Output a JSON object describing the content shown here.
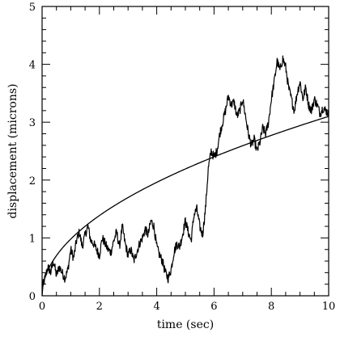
{
  "chart_data": {
    "type": "line",
    "title": "",
    "xlabel": "time (sec)",
    "ylabel": "displacement (microns)",
    "xlim": [
      0,
      10
    ],
    "ylim": [
      0,
      5
    ],
    "x_ticks": [
      0,
      2,
      4,
      6,
      8,
      10
    ],
    "y_ticks": [
      0,
      1,
      2,
      3,
      4,
      5
    ],
    "grid": false,
    "legend": "none",
    "series": [
      {
        "style": "jagged",
        "x": [
          0,
          0.1,
          0.2,
          0.3,
          0.4,
          0.5,
          0.6,
          0.7,
          0.8,
          0.9,
          1.0,
          1.1,
          1.2,
          1.3,
          1.4,
          1.5,
          1.6,
          1.7,
          1.8,
          1.9,
          2.0,
          2.1,
          2.2,
          2.3,
          2.4,
          2.5,
          2.6,
          2.7,
          2.8,
          2.9,
          3.0,
          3.1,
          3.2,
          3.3,
          3.4,
          3.5,
          3.6,
          3.7,
          3.8,
          3.9,
          4.0,
          4.1,
          4.2,
          4.3,
          4.4,
          4.5,
          4.6,
          4.7,
          4.8,
          4.9,
          5.0,
          5.1,
          5.2,
          5.3,
          5.4,
          5.5,
          5.6,
          5.7,
          5.8,
          5.9,
          6.0,
          6.1,
          6.2,
          6.3,
          6.4,
          6.5,
          6.6,
          6.7,
          6.8,
          6.9,
          7.0,
          7.1,
          7.2,
          7.3,
          7.4,
          7.5,
          7.6,
          7.7,
          7.8,
          7.9,
          8.0,
          8.1,
          8.2,
          8.3,
          8.4,
          8.5,
          8.6,
          8.7,
          8.8,
          8.9,
          9.0,
          9.1,
          9.2,
          9.3,
          9.4,
          9.5,
          9.6,
          9.7,
          9.8,
          9.9,
          10.0
        ],
        "y": [
          0.15,
          0.3,
          0.5,
          0.4,
          0.6,
          0.35,
          0.5,
          0.4,
          0.3,
          0.45,
          0.8,
          0.65,
          0.95,
          1.1,
          0.85,
          1.05,
          1.2,
          0.95,
          0.9,
          0.8,
          0.7,
          1.0,
          0.9,
          0.8,
          0.75,
          0.95,
          1.1,
          0.85,
          1.2,
          0.9,
          0.7,
          0.8,
          0.6,
          0.75,
          0.9,
          1.0,
          1.15,
          1.05,
          1.3,
          1.2,
          0.85,
          0.7,
          0.6,
          0.4,
          0.3,
          0.45,
          0.75,
          0.9,
          0.85,
          1.05,
          1.3,
          1.1,
          0.95,
          1.4,
          1.5,
          1.2,
          1.05,
          1.5,
          2.2,
          2.5,
          2.4,
          2.5,
          2.8,
          3.0,
          3.2,
          3.45,
          3.3,
          3.35,
          3.1,
          3.2,
          3.4,
          3.1,
          2.8,
          2.6,
          2.7,
          2.5,
          2.65,
          2.9,
          2.8,
          3.0,
          3.4,
          3.7,
          4.05,
          3.9,
          4.1,
          3.95,
          3.6,
          3.4,
          3.2,
          3.5,
          3.7,
          3.4,
          3.6,
          3.3,
          3.2,
          3.4,
          3.3,
          3.15,
          3.25,
          3.2,
          3.15
        ]
      },
      {
        "style": "smooth",
        "formula": "y = 0.98 * sqrt(t)",
        "x": [
          0,
          0.1,
          0.25,
          0.5,
          0.75,
          1,
          1.5,
          2,
          2.5,
          3,
          3.5,
          4,
          4.5,
          5,
          5.5,
          6,
          6.5,
          7,
          7.5,
          8,
          8.5,
          9,
          9.5,
          10
        ],
        "y": [
          0.0,
          0.31,
          0.49,
          0.69,
          0.85,
          0.98,
          1.2,
          1.39,
          1.55,
          1.7,
          1.83,
          1.96,
          2.08,
          2.19,
          2.3,
          2.4,
          2.5,
          2.59,
          2.68,
          2.77,
          2.86,
          2.94,
          3.02,
          3.1
        ]
      }
    ]
  }
}
